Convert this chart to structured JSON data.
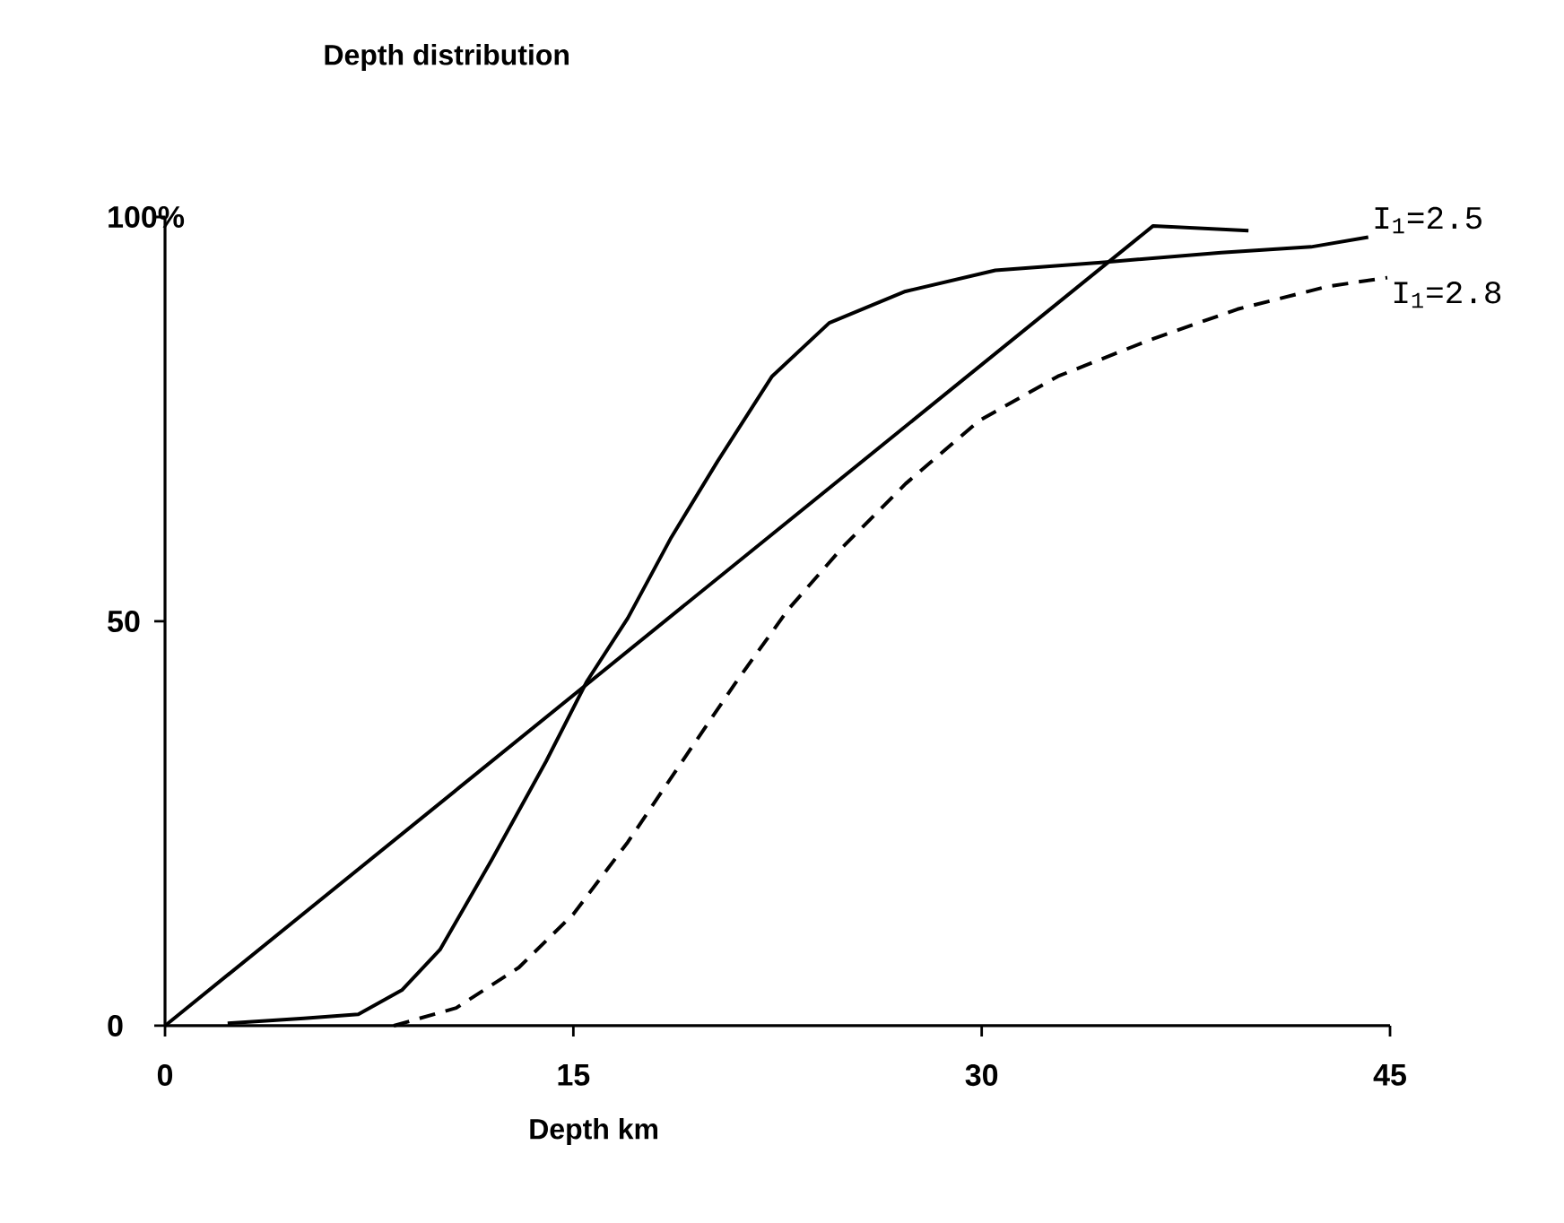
{
  "chart_data": {
    "type": "line",
    "title": "Depth distribution",
    "xlabel": "Depth km",
    "xlim": [
      0,
      45
    ],
    "ylim": [
      0,
      100
    ],
    "xticks": [
      0,
      15,
      30,
      45
    ],
    "yticks": [
      0,
      50,
      {
        "value": 100,
        "label": "100%"
      }
    ],
    "grid": false,
    "series": [
      {
        "name": "I$_{1}$=2.5",
        "color": "#000000",
        "line_style": "solid",
        "x": [
          2.3,
          5.1,
          7.1,
          8.7,
          10.1,
          12.0,
          14.0,
          15.5,
          17.0,
          18.6,
          20.3,
          22.3,
          24.4,
          27.2,
          30.5,
          34.5,
          38.8,
          42.1,
          44.2
        ],
        "values": [
          0.3,
          0.9,
          1.4,
          4.4,
          9.4,
          20.5,
          32.7,
          42.6,
          50.4,
          60.4,
          69.8,
          80.3,
          86.9,
          90.8,
          93.4,
          94.4,
          95.6,
          96.3,
          97.5
        ]
      },
      {
        "name": "I$_{1}$=2.8",
        "color": "#000000",
        "line_style": "dashed",
        "x": [
          8.4,
          10.7,
          13.0,
          15.0,
          17.0,
          19.0,
          21.0,
          22.9,
          24.9,
          27.2,
          29.9,
          32.8,
          36.1,
          39.4,
          42.7,
          44.9
        ],
        "values": [
          0,
          2.2,
          7.2,
          13.8,
          22.7,
          32.7,
          42.6,
          51.5,
          59.2,
          67.0,
          74.8,
          80.3,
          84.7,
          88.6,
          91.4,
          92.5
        ]
      },
      {
        "color": "#000000",
        "line_style": "solid",
        "x": [
          0,
          36.3,
          39.8
        ],
        "values": [
          0,
          98.9,
          98.3
        ]
      }
    ]
  }
}
